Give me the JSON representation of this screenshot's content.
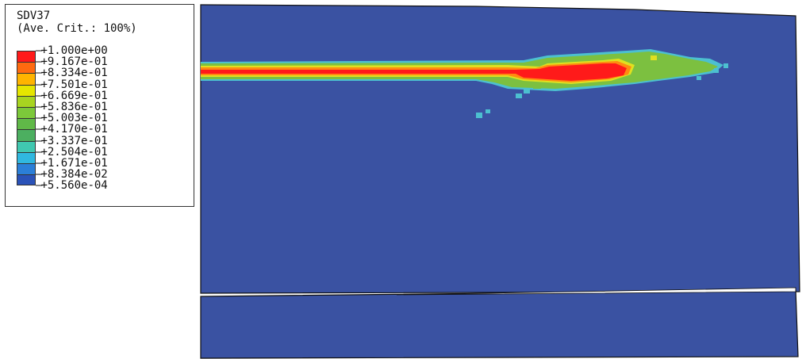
{
  "legend": {
    "variable": "SDV37",
    "averaging": "(Ave. Crit.: 100%)",
    "entries": [
      {
        "label": "+1.000e+00",
        "color": "#ff1a1a"
      },
      {
        "label": "+9.167e-01",
        "color": "#ff6a10"
      },
      {
        "label": "+8.334e-01",
        "color": "#ffb400"
      },
      {
        "label": "+7.501e-01",
        "color": "#e6e600"
      },
      {
        "label": "+6.669e-01",
        "color": "#a8d420"
      },
      {
        "label": "+5.836e-01",
        "color": "#7cc83a"
      },
      {
        "label": "+5.003e-01",
        "color": "#60b848"
      },
      {
        "label": "+4.170e-01",
        "color": "#4caf60"
      },
      {
        "label": "+3.337e-01",
        "color": "#40c8b0"
      },
      {
        "label": "+2.504e-01",
        "color": "#30b8e0"
      },
      {
        "label": "+1.671e-01",
        "color": "#2b7fd8"
      },
      {
        "label": "+8.384e-02",
        "color": "#2a52b8"
      },
      {
        "label": "+5.560e-04",
        "color": "#3a4ea4"
      }
    ]
  },
  "model": {
    "background_color": "#3a52a2",
    "crack_core_color": "#ff1a1a",
    "damage_zone_color": "#7cc040",
    "edge_color": "#4cc0d0"
  }
}
